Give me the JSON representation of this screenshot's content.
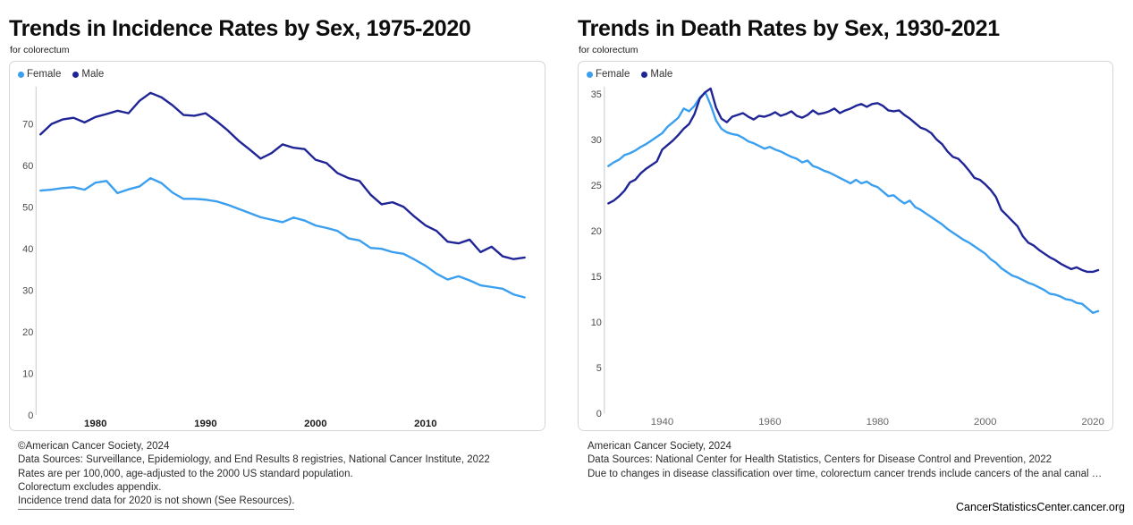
{
  "page": {
    "site_label": "CancerStatisticsCenter.cancer.org"
  },
  "chart_data": [
    {
      "id": "incidence-by-sex",
      "type": "line",
      "title": "Trends in Incidence Rates by Sex, 1975-2020",
      "subtitle": "for colorectum",
      "x_start": 1975,
      "xlim": [
        1975,
        2019
      ],
      "ylim": [
        0,
        79
      ],
      "y_ticks": [
        0,
        10,
        20,
        30,
        40,
        50,
        60,
        70
      ],
      "x_ticks": [
        1980,
        1990,
        2000,
        2010
      ],
      "grid": false,
      "legend_position": "top-left",
      "series": [
        {
          "name": "Female",
          "color": "#3b9ff0",
          "values": [
            54.0,
            54.2,
            54.6,
            54.8,
            54.2,
            55.9,
            56.3,
            53.4,
            54.3,
            55.0,
            57.0,
            55.8,
            53.5,
            52.0,
            52.0,
            51.8,
            51.4,
            50.6,
            49.6,
            48.6,
            47.6,
            47.0,
            46.4,
            47.5,
            46.8,
            45.6,
            45.0,
            44.3,
            42.5,
            42.0,
            40.2,
            40.0,
            39.2,
            38.8,
            37.4,
            35.9,
            34.0,
            32.6,
            33.4,
            32.4,
            31.2,
            30.8,
            30.4,
            29.0,
            28.3
          ]
        },
        {
          "name": "Male",
          "color": "#1f2596",
          "values": [
            67.5,
            70.0,
            71.1,
            71.5,
            70.4,
            71.7,
            72.4,
            73.2,
            72.6,
            75.6,
            77.5,
            76.4,
            74.5,
            72.2,
            72.0,
            72.6,
            70.7,
            68.5,
            66.0,
            63.9,
            61.7,
            63.0,
            65.1,
            64.3,
            64.0,
            61.4,
            60.6,
            58.2,
            57.0,
            56.3,
            53.0,
            50.7,
            51.2,
            50.1,
            47.7,
            45.6,
            44.3,
            41.7,
            41.3,
            42.2,
            39.2,
            40.5,
            38.2,
            37.5,
            37.9
          ]
        }
      ],
      "footer_lines": [
        "©American Cancer Society, 2024",
        "Data Sources: Surveillance, Epidemiology, and End Results 8 registries, National Cancer Institute, 2022",
        "Rates are per 100,000, age-adjusted to the 2000 US standard population.",
        "Colorectum excludes appendix.",
        "Incidence trend data for 2020 is not shown (See Resources)."
      ]
    },
    {
      "id": "death-by-sex",
      "type": "line",
      "title": "Trends in Death Rates by Sex, 1930-2021",
      "subtitle": "for colorectum",
      "x_start": 1930,
      "xlim": [
        1930,
        2021
      ],
      "ylim": [
        0,
        35.8
      ],
      "y_ticks": [
        0,
        5,
        10,
        15,
        20,
        25,
        30,
        35
      ],
      "x_ticks": [
        1940,
        1960,
        1980,
        2000,
        2020
      ],
      "grid": false,
      "legend_position": "top-left",
      "series": [
        {
          "name": "Female",
          "color": "#3b9ff0",
          "values": [
            27.1,
            27.5,
            27.8,
            28.3,
            28.5,
            28.8,
            29.2,
            29.5,
            29.9,
            30.3,
            30.7,
            31.4,
            31.9,
            32.4,
            33.4,
            33.1,
            33.7,
            34.6,
            35.2,
            33.8,
            32.1,
            31.2,
            30.8,
            30.6,
            30.5,
            30.2,
            29.8,
            29.6,
            29.3,
            29.0,
            29.2,
            28.9,
            28.7,
            28.4,
            28.1,
            27.9,
            27.5,
            27.7,
            27.1,
            26.9,
            26.6,
            26.4,
            26.1,
            25.8,
            25.5,
            25.2,
            25.6,
            25.2,
            25.4,
            25.0,
            24.8,
            24.3,
            23.8,
            23.9,
            23.4,
            23.0,
            23.3,
            22.6,
            22.3,
            21.9,
            21.5,
            21.1,
            20.7,
            20.2,
            19.8,
            19.4,
            19.0,
            18.7,
            18.3,
            17.9,
            17.5,
            16.9,
            16.5,
            15.9,
            15.5,
            15.1,
            14.9,
            14.6,
            14.3,
            14.1,
            13.8,
            13.5,
            13.1,
            13.0,
            12.8,
            12.5,
            12.4,
            12.1,
            12.0,
            11.5,
            11.0,
            11.2
          ]
        },
        {
          "name": "Male",
          "color": "#1f2596",
          "values": [
            23.0,
            23.3,
            23.8,
            24.4,
            25.3,
            25.6,
            26.3,
            26.8,
            27.2,
            27.6,
            28.9,
            29.4,
            29.9,
            30.5,
            31.2,
            31.7,
            32.8,
            34.5,
            35.2,
            35.6,
            33.5,
            32.3,
            31.9,
            32.5,
            32.7,
            32.9,
            32.5,
            32.2,
            32.6,
            32.5,
            32.7,
            33.0,
            32.6,
            32.8,
            33.1,
            32.6,
            32.4,
            32.7,
            33.2,
            32.8,
            32.9,
            33.1,
            33.4,
            32.9,
            33.2,
            33.4,
            33.7,
            33.9,
            33.6,
            33.9,
            34.0,
            33.7,
            33.2,
            33.1,
            33.2,
            32.7,
            32.3,
            31.8,
            31.3,
            31.1,
            30.7,
            30.0,
            29.5,
            28.7,
            28.1,
            27.9,
            27.3,
            26.6,
            25.8,
            25.6,
            25.1,
            24.5,
            23.7,
            22.3,
            21.7,
            21.1,
            20.5,
            19.4,
            18.7,
            18.4,
            17.9,
            17.5,
            17.1,
            16.8,
            16.4,
            16.1,
            15.8,
            16.0,
            15.7,
            15.5,
            15.5,
            15.7
          ]
        }
      ],
      "footer_lines": [
        "American Cancer Society, 2024",
        "Data Sources: National Center for Health Statistics, Centers for Disease Control and Prevention, 2022",
        "Due to changes in disease classification over time, colorectum cancer trends include cancers of the anal canal …"
      ]
    }
  ]
}
